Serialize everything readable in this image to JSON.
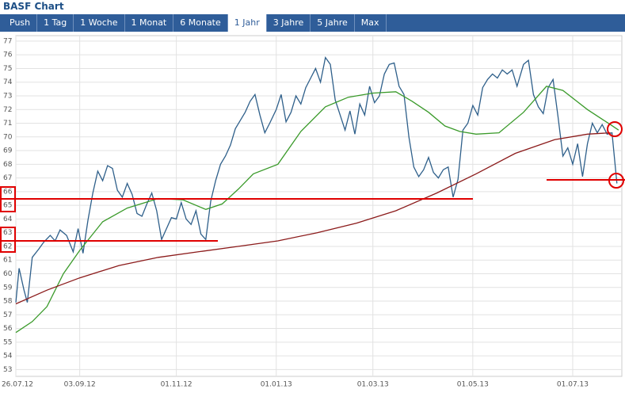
{
  "header": {
    "title": "BASF Chart"
  },
  "tabs": [
    {
      "label": "Push"
    },
    {
      "label": "1 Tag"
    },
    {
      "label": "1 Woche"
    },
    {
      "label": "1 Monat"
    },
    {
      "label": "6 Monate"
    },
    {
      "label": "1 Jahr",
      "active": true
    },
    {
      "label": "3 Jahre"
    },
    {
      "label": "5 Jahre"
    },
    {
      "label": "Max"
    }
  ],
  "chart_data": {
    "type": "line",
    "grid": true,
    "xlim": [
      "2012-07-26",
      "2013-07-31"
    ],
    "xticks": [
      {
        "value": "2012-07-26",
        "label": "26.07.12"
      },
      {
        "value": "2012-09-03",
        "label": "03.09.12"
      },
      {
        "value": "2012-11-01",
        "label": "01.11.12"
      },
      {
        "value": "2013-01-01",
        "label": "01.01.13"
      },
      {
        "value": "2013-03-01",
        "label": "01.03.13"
      },
      {
        "value": "2013-05-01",
        "label": "01.05.13"
      },
      {
        "value": "2013-07-01",
        "label": "01.07.13"
      }
    ],
    "ylim": [
      52.5,
      77.4
    ],
    "yticks": [
      53,
      54,
      55,
      56,
      57,
      58,
      59,
      60,
      61,
      62,
      63,
      64,
      65,
      66,
      67,
      68,
      69,
      70,
      71,
      72,
      73,
      74,
      75,
      76,
      77
    ],
    "series": [
      {
        "color": "#2e5f8a",
        "x": [
          "2012-07-26",
          "2012-07-28",
          "2012-07-31",
          "2012-08-02",
          "2012-08-05",
          "2012-08-09",
          "2012-08-12",
          "2012-08-16",
          "2012-08-19",
          "2012-08-22",
          "2012-08-26",
          "2012-08-30",
          "2012-09-02",
          "2012-09-05",
          "2012-09-08",
          "2012-09-11",
          "2012-09-14",
          "2012-09-17",
          "2012-09-20",
          "2012-09-23",
          "2012-09-26",
          "2012-09-29",
          "2012-10-02",
          "2012-10-05",
          "2012-10-08",
          "2012-10-11",
          "2012-10-14",
          "2012-10-17",
          "2012-10-20",
          "2012-10-23",
          "2012-10-26",
          "2012-10-29",
          "2012-11-01",
          "2012-11-04",
          "2012-11-07",
          "2012-11-10",
          "2012-11-13",
          "2012-11-16",
          "2012-11-19",
          "2012-11-22",
          "2012-11-25",
          "2012-11-28",
          "2012-12-01",
          "2012-12-04",
          "2012-12-07",
          "2012-12-10",
          "2012-12-13",
          "2012-12-16",
          "2012-12-19",
          "2012-12-22",
          "2012-12-25",
          "2012-12-28",
          "2013-01-01",
          "2013-01-04",
          "2013-01-07",
          "2013-01-10",
          "2013-01-13",
          "2013-01-16",
          "2013-01-19",
          "2013-01-22",
          "2013-01-25",
          "2013-01-28",
          "2013-01-31",
          "2013-02-03",
          "2013-02-06",
          "2013-02-09",
          "2013-02-12",
          "2013-02-15",
          "2013-02-18",
          "2013-02-21",
          "2013-02-24",
          "2013-02-27",
          "2013-03-02",
          "2013-03-05",
          "2013-03-08",
          "2013-03-11",
          "2013-03-14",
          "2013-03-17",
          "2013-03-20",
          "2013-03-23",
          "2013-03-26",
          "2013-03-29",
          "2013-04-01",
          "2013-04-04",
          "2013-04-07",
          "2013-04-10",
          "2013-04-13",
          "2013-04-16",
          "2013-04-19",
          "2013-04-22",
          "2013-04-25",
          "2013-04-28",
          "2013-05-01",
          "2013-05-04",
          "2013-05-07",
          "2013-05-10",
          "2013-05-13",
          "2013-05-16",
          "2013-05-19",
          "2013-05-22",
          "2013-05-25",
          "2013-05-28",
          "2013-06-01",
          "2013-06-04",
          "2013-06-07",
          "2013-06-10",
          "2013-06-13",
          "2013-06-16",
          "2013-06-19",
          "2013-06-22",
          "2013-06-25",
          "2013-06-28",
          "2013-07-01",
          "2013-07-04",
          "2013-07-07",
          "2013-07-10",
          "2013-07-13",
          "2013-07-16",
          "2013-07-19",
          "2013-07-22",
          "2013-07-25",
          "2013-07-28"
        ],
        "values": [
          57.9,
          60.4,
          58.8,
          57.9,
          61.2,
          61.8,
          62.3,
          62.8,
          62.4,
          63.2,
          62.8,
          61.6,
          63.3,
          61.5,
          63.9,
          65.9,
          67.5,
          66.8,
          67.9,
          67.7,
          66.1,
          65.6,
          66.6,
          65.8,
          64.4,
          64.2,
          65.1,
          65.9,
          64.6,
          62.5,
          63.3,
          64.1,
          64.0,
          65.2,
          64.0,
          63.6,
          64.6,
          62.9,
          62.5,
          65.3,
          66.8,
          68.0,
          68.6,
          69.4,
          70.6,
          71.2,
          71.8,
          72.6,
          73.1,
          71.6,
          70.3,
          71.0,
          72.0,
          73.1,
          71.1,
          71.8,
          73.0,
          72.4,
          73.6,
          74.3,
          75.0,
          74.0,
          75.8,
          75.3,
          72.7,
          71.6,
          70.5,
          71.9,
          70.2,
          72.4,
          71.6,
          73.7,
          72.5,
          73.0,
          74.6,
          75.3,
          75.4,
          73.7,
          73.1,
          70.0,
          67.8,
          67.1,
          67.6,
          68.5,
          67.4,
          67.0,
          67.6,
          67.8,
          65.6,
          66.9,
          70.5,
          71.0,
          72.3,
          71.6,
          73.6,
          74.2,
          74.6,
          74.3,
          74.9,
          74.6,
          74.9,
          73.7,
          75.3,
          75.6,
          73.1,
          72.2,
          71.7,
          73.6,
          74.2,
          71.5,
          68.6,
          69.2,
          68.0,
          69.5,
          67.1,
          69.5,
          71.0,
          70.3,
          70.9,
          70.2,
          70.3,
          66.6
        ]
      },
      {
        "color": "#3a9a2a",
        "x": [
          "2012-07-26",
          "2012-08-05",
          "2012-08-14",
          "2012-08-24",
          "2012-09-03",
          "2012-09-17",
          "2012-10-02",
          "2012-10-21",
          "2012-11-05",
          "2012-11-19",
          "2012-11-29",
          "2012-12-09",
          "2012-12-18",
          "2013-01-02",
          "2013-01-16",
          "2013-01-31",
          "2013-02-14",
          "2013-03-01",
          "2013-03-15",
          "2013-03-25",
          "2013-04-04",
          "2013-04-14",
          "2013-04-23",
          "2013-05-03",
          "2013-05-17",
          "2013-06-01",
          "2013-06-15",
          "2013-06-25",
          "2013-07-10",
          "2013-07-24",
          "2013-07-29"
        ],
        "values": [
          55.7,
          56.5,
          57.6,
          60.0,
          61.7,
          63.8,
          64.8,
          65.5,
          65.4,
          64.7,
          65.1,
          66.2,
          67.3,
          68.0,
          70.4,
          72.2,
          72.9,
          73.2,
          73.3,
          72.6,
          71.8,
          70.8,
          70.4,
          70.2,
          70.3,
          71.8,
          73.7,
          73.4,
          72.0,
          70.9,
          70.5
        ]
      },
      {
        "color": "#8b1a1a",
        "x": [
          "2012-07-26",
          "2012-08-14",
          "2012-09-03",
          "2012-09-27",
          "2012-10-21",
          "2012-11-14",
          "2012-12-09",
          "2013-01-02",
          "2013-01-26",
          "2013-02-19",
          "2013-03-15",
          "2013-04-09",
          "2013-05-03",
          "2013-05-27",
          "2013-06-20",
          "2013-07-10",
          "2013-07-24"
        ],
        "values": [
          57.8,
          58.8,
          59.7,
          60.6,
          61.2,
          61.6,
          62.0,
          62.4,
          63.0,
          63.7,
          64.6,
          65.9,
          67.3,
          68.8,
          69.8,
          70.2,
          70.3
        ]
      }
    ]
  }
}
